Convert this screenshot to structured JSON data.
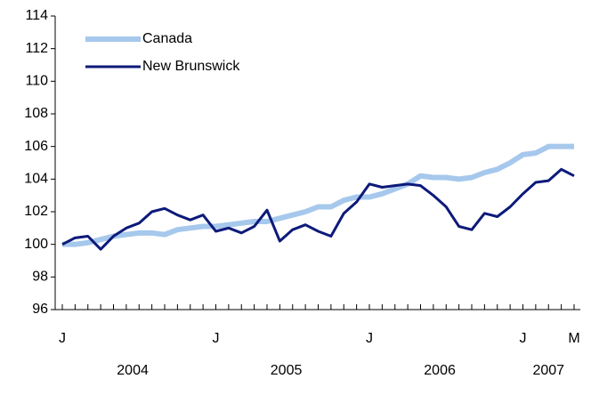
{
  "chart_data": {
    "type": "line",
    "categories": [
      "J",
      null,
      null,
      null,
      null,
      null,
      null,
      null,
      null,
      null,
      null,
      null,
      "J",
      null,
      null,
      null,
      null,
      null,
      null,
      null,
      null,
      null,
      null,
      null,
      "J",
      null,
      null,
      null,
      null,
      null,
      null,
      null,
      null,
      null,
      null,
      null,
      "J",
      null,
      null,
      null,
      "M"
    ],
    "year_labels": [
      "2004",
      "2005",
      "2006",
      "2007"
    ],
    "ylim": [
      96,
      114
    ],
    "yticks": [
      96,
      98,
      100,
      102,
      104,
      106,
      108,
      110,
      112,
      114
    ],
    "legend": "upper left",
    "series": [
      {
        "name": "Canada",
        "color": "#a6c8ec",
        "values": [
          100.0,
          100.0,
          100.1,
          100.3,
          100.5,
          100.6,
          100.7,
          100.7,
          100.6,
          100.9,
          101.0,
          101.1,
          101.1,
          101.2,
          101.3,
          101.4,
          101.4,
          101.6,
          101.8,
          102.0,
          102.3,
          102.3,
          102.7,
          102.9,
          102.9,
          103.1,
          103.4,
          103.7,
          104.2,
          104.1,
          104.1,
          104.0,
          104.1,
          104.4,
          104.6,
          105.0,
          105.5,
          105.6,
          106.0,
          106.0,
          106.0
        ]
      },
      {
        "name": "New Brunswick",
        "color": "#0d1a7a",
        "values": [
          100.0,
          100.4,
          100.5,
          99.7,
          100.5,
          101.0,
          101.3,
          102.0,
          102.2,
          101.8,
          101.5,
          101.8,
          100.8,
          101.0,
          100.7,
          101.1,
          102.1,
          100.2,
          100.9,
          101.2,
          100.8,
          100.5,
          101.9,
          102.6,
          103.7,
          103.5,
          103.6,
          103.7,
          103.6,
          103.0,
          102.3,
          101.1,
          100.9,
          101.9,
          101.7,
          102.3,
          103.1,
          103.8,
          103.9,
          104.6,
          104.2
        ]
      }
    ]
  }
}
